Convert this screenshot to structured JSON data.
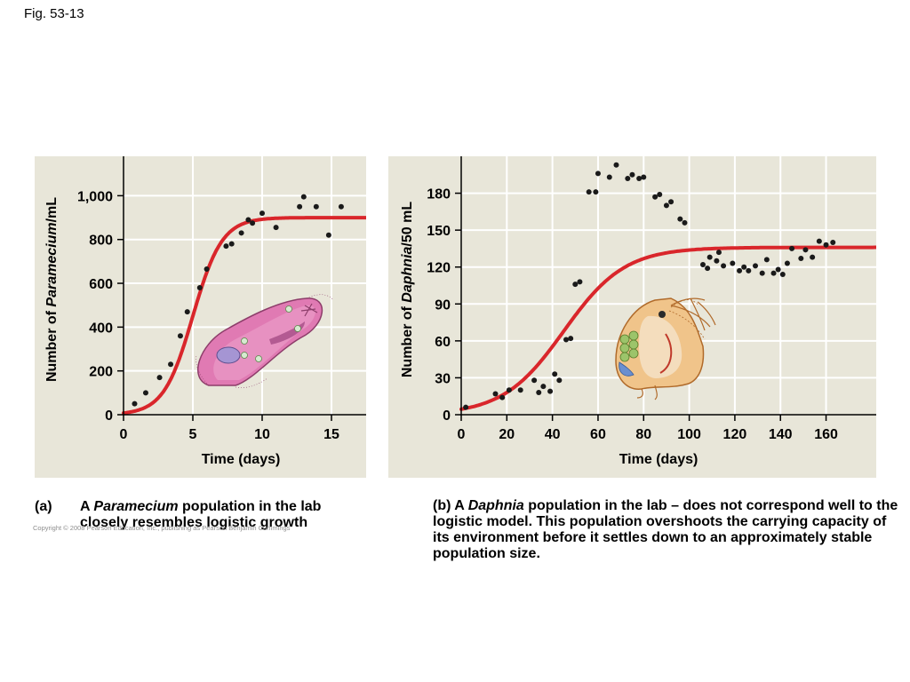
{
  "figure_label": "Fig. 53-13",
  "copyright": "Copyright © 2008 Pearson Education, Inc., publishing as Pearson Benjamin Cummings",
  "colors": {
    "panel_bg": "#e8e6d9",
    "grid": "#ffffff",
    "curve": "#d9262b",
    "points": "#1a1a1a"
  },
  "captions": {
    "a_marker": "(a)",
    "a_prefix": "A ",
    "a_italic": "Paramecium",
    "a_rest": " population in the lab closely resembles logistic growth",
    "b_prefix": "(b) A ",
    "b_italic": "Daphnia",
    "b_rest": " population in the lab – does not correspond well to the logistic model.  This population overshoots the carrying capacity of its environment before it settles down to an approximately stable population size."
  },
  "chart_data": [
    {
      "type": "scatter",
      "organism_icon": "paramecium-illustration",
      "xlabel": "Time (days)",
      "ylabel_parts": [
        "Number of ",
        "Paramecium",
        "/mL"
      ],
      "xlim": [
        0,
        17.5
      ],
      "ylim": [
        0,
        1180
      ],
      "xticks": [
        0,
        5,
        10,
        15
      ],
      "yticks": [
        0,
        200,
        400,
        600,
        800,
        1000
      ],
      "ytick_labels": [
        "0",
        "200",
        "400",
        "600",
        "800",
        "1,000"
      ],
      "grid": true,
      "points": [
        [
          0.8,
          50
        ],
        [
          1.6,
          100
        ],
        [
          2.6,
          170
        ],
        [
          3.4,
          230
        ],
        [
          4.1,
          360
        ],
        [
          4.6,
          470
        ],
        [
          5.5,
          580
        ],
        [
          6,
          665
        ],
        [
          7.4,
          770
        ],
        [
          7.8,
          780
        ],
        [
          8.5,
          830
        ],
        [
          9,
          890
        ],
        [
          9.3,
          875
        ],
        [
          10,
          920
        ],
        [
          11,
          855
        ],
        [
          12.7,
          950
        ],
        [
          13,
          995
        ],
        [
          13.9,
          950
        ],
        [
          14.8,
          820
        ],
        [
          15.7,
          950
        ]
      ],
      "logistic": {
        "K": 900,
        "r": 0.95,
        "t0": 5
      }
    },
    {
      "type": "scatter",
      "organism_icon": "daphnia-illustration",
      "xlabel": "Time (days)",
      "ylabel_parts": [
        "Number of ",
        "Daphnia",
        "/50 mL"
      ],
      "xlim": [
        0,
        182
      ],
      "ylim": [
        0,
        210
      ],
      "xticks": [
        0,
        20,
        40,
        60,
        80,
        100,
        120,
        140,
        160
      ],
      "yticks": [
        0,
        30,
        60,
        90,
        120,
        150,
        180
      ],
      "ytick_labels": [
        "0",
        "30",
        "60",
        "90",
        "120",
        "150",
        "180"
      ],
      "grid": true,
      "points": [
        [
          2,
          6
        ],
        [
          15,
          17
        ],
        [
          18,
          14
        ],
        [
          21,
          20
        ],
        [
          26,
          20
        ],
        [
          32,
          28
        ],
        [
          34,
          18
        ],
        [
          36,
          23
        ],
        [
          39,
          19
        ],
        [
          41,
          33
        ],
        [
          43,
          28
        ],
        [
          46,
          61
        ],
        [
          48,
          62
        ],
        [
          50,
          106
        ],
        [
          52,
          108
        ],
        [
          56,
          181
        ],
        [
          59,
          181
        ],
        [
          60,
          196
        ],
        [
          65,
          193
        ],
        [
          68,
          203
        ],
        [
          73,
          192
        ],
        [
          75,
          195
        ],
        [
          78,
          192
        ],
        [
          80,
          193
        ],
        [
          85,
          177
        ],
        [
          87,
          179
        ],
        [
          90,
          170
        ],
        [
          92,
          173
        ],
        [
          96,
          159
        ],
        [
          98,
          156
        ],
        [
          106,
          122
        ],
        [
          108,
          119
        ],
        [
          109,
          128
        ],
        [
          112,
          125
        ],
        [
          113,
          132
        ],
        [
          115,
          121
        ],
        [
          119,
          123
        ],
        [
          122,
          117
        ],
        [
          124,
          120
        ],
        [
          126,
          117
        ],
        [
          129,
          121
        ],
        [
          132,
          115
        ],
        [
          134,
          126
        ],
        [
          137,
          115
        ],
        [
          139,
          118
        ],
        [
          141,
          114
        ],
        [
          143,
          123
        ],
        [
          145,
          135
        ],
        [
          149,
          127
        ],
        [
          151,
          134
        ],
        [
          154,
          128
        ],
        [
          157,
          141
        ],
        [
          160,
          138
        ],
        [
          163,
          140
        ]
      ],
      "logistic": {
        "K": 136,
        "r": 0.075,
        "t0": 45
      }
    }
  ]
}
